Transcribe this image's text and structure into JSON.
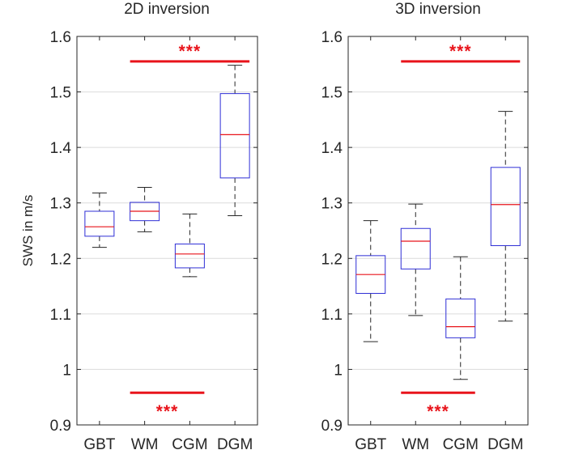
{
  "chart_data": [
    {
      "type": "box",
      "title": "2D inversion",
      "ylabel": "SWS in m/s",
      "ylim": [
        0.9,
        1.6
      ],
      "yticks": [
        "0.9",
        "1",
        "1.1",
        "1.2",
        "1.3",
        "1.4",
        "1.5",
        "1.6"
      ],
      "ytick_values": [
        0.9,
        1.0,
        1.1,
        1.2,
        1.3,
        1.4,
        1.5,
        1.6
      ],
      "grid": "horizontal",
      "categories": [
        "GBT",
        "WM",
        "CGM",
        "DGM"
      ],
      "boxes": [
        {
          "category": "GBT",
          "whisker_low": 1.22,
          "q1": 1.24,
          "median": 1.257,
          "q3": 1.285,
          "whisker_high": 1.318
        },
        {
          "category": "WM",
          "whisker_low": 1.248,
          "q1": 1.268,
          "median": 1.285,
          "q3": 1.301,
          "whisker_high": 1.328
        },
        {
          "category": "CGM",
          "whisker_low": 1.167,
          "q1": 1.183,
          "median": 1.208,
          "q3": 1.226,
          "whisker_high": 1.28
        },
        {
          "category": "DGM",
          "whisker_low": 1.277,
          "q1": 1.345,
          "median": 1.423,
          "q3": 1.497,
          "whisker_high": 1.548
        }
      ],
      "significance": [
        {
          "label": "***",
          "from": "WM",
          "to": "DGM",
          "level": 1.555
        },
        {
          "label": "***",
          "from": "WM",
          "to": "CGM",
          "level": 0.958
        }
      ]
    },
    {
      "type": "box",
      "title": "3D inversion",
      "ylabel": "",
      "ylim": [
        0.9,
        1.6
      ],
      "yticks": [
        "0.9",
        "1",
        "1.1",
        "1.2",
        "1.3",
        "1.4",
        "1.5",
        "1.6"
      ],
      "ytick_values": [
        0.9,
        1.0,
        1.1,
        1.2,
        1.3,
        1.4,
        1.5,
        1.6
      ],
      "grid": "horizontal",
      "categories": [
        "GBT",
        "WM",
        "CGM",
        "DGM"
      ],
      "boxes": [
        {
          "category": "GBT",
          "whisker_low": 1.05,
          "q1": 1.137,
          "median": 1.171,
          "q3": 1.205,
          "whisker_high": 1.268
        },
        {
          "category": "WM",
          "whisker_low": 1.097,
          "q1": 1.181,
          "median": 1.231,
          "q3": 1.254,
          "whisker_high": 1.298
        },
        {
          "category": "CGM",
          "whisker_low": 0.982,
          "q1": 1.057,
          "median": 1.077,
          "q3": 1.127,
          "whisker_high": 1.203
        },
        {
          "category": "DGM",
          "whisker_low": 1.087,
          "q1": 1.223,
          "median": 1.297,
          "q3": 1.364,
          "whisker_high": 1.465
        }
      ],
      "significance": [
        {
          "label": "***",
          "from": "WM",
          "to": "DGM",
          "level": 1.555
        },
        {
          "label": "***",
          "from": "WM",
          "to": "CGM",
          "level": 0.958
        }
      ]
    }
  ],
  "colors": {
    "box": "#2f2fd6",
    "median": "#e8141b",
    "whisker": "#262626",
    "significance": "#e8141b",
    "grid": "#dcdcdc",
    "axis": "#262626"
  }
}
